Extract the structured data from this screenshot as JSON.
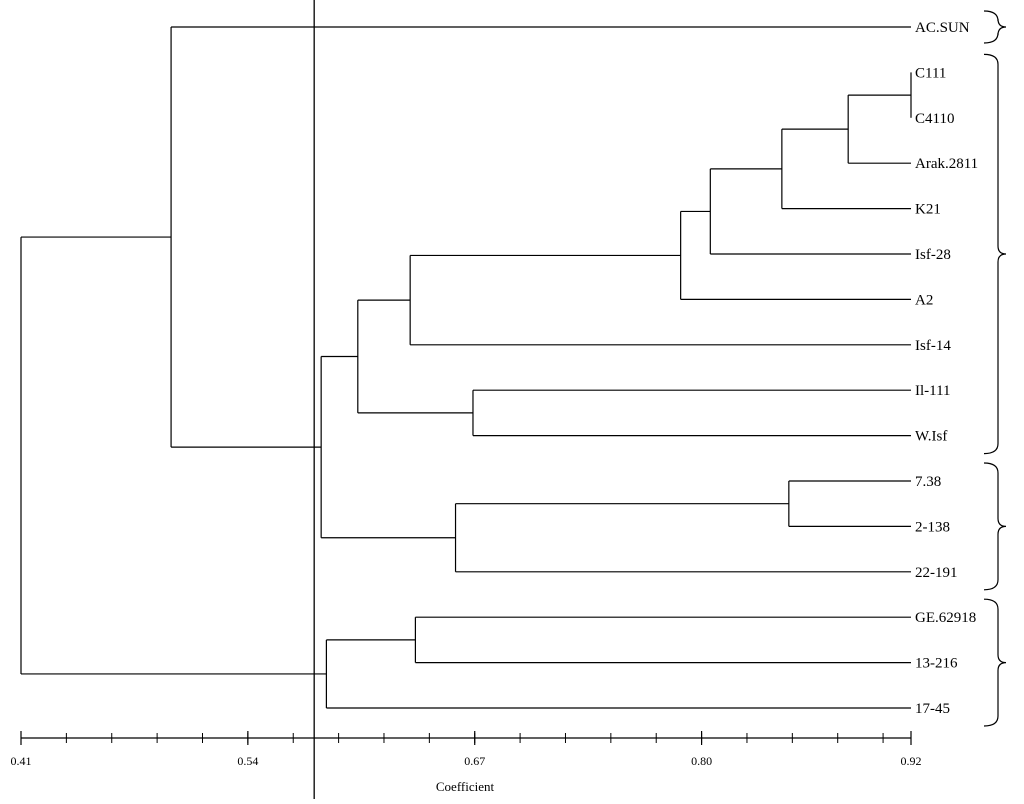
{
  "chart_data": {
    "type": "dendrogram",
    "xlabel": "Coefficient",
    "xlim": [
      0.41,
      0.92
    ],
    "ticks": {
      "values": [
        0.41,
        0.54,
        0.67,
        0.8,
        0.92
      ],
      "labels": [
        "0.41",
        "0.54",
        "0.67",
        "0.80",
        "0.92"
      ],
      "minor_step": 0.026
    },
    "reference_line": 0.578,
    "leaves": [
      "AC.SUN",
      "C111",
      "C4110",
      "Arak.2811",
      "K21",
      "Isf-28",
      "A2",
      "Isf-14",
      "Il-111",
      "W.Isf",
      "7.38",
      "2-138",
      "22-191",
      "GE.62918",
      "13-216",
      "17-45"
    ],
    "merges": [
      {
        "id": "m1",
        "children": [
          "C111",
          "C4110"
        ],
        "height": 0.92
      },
      {
        "id": "m2",
        "children": [
          "m1",
          "Arak.2811"
        ],
        "height": 0.884
      },
      {
        "id": "m3",
        "children": [
          "m2",
          "K21"
        ],
        "height": 0.846
      },
      {
        "id": "m4",
        "children": [
          "m3",
          "Isf-28"
        ],
        "height": 0.805
      },
      {
        "id": "m5",
        "children": [
          "m4",
          "A2"
        ],
        "height": 0.788
      },
      {
        "id": "m6",
        "children": [
          "m5",
          "Isf-14"
        ],
        "height": 0.633
      },
      {
        "id": "m7",
        "children": [
          "Il-111",
          "W.Isf"
        ],
        "height": 0.669
      },
      {
        "id": "m8",
        "children": [
          "m6",
          "m7"
        ],
        "height": 0.603
      },
      {
        "id": "m9",
        "children": [
          "7.38",
          "2-138"
        ],
        "height": 0.85
      },
      {
        "id": "m10",
        "children": [
          "m9",
          "22-191"
        ],
        "height": 0.659
      },
      {
        "id": "m11",
        "children": [
          "m8",
          "m10"
        ],
        "height": 0.582
      },
      {
        "id": "m12",
        "children": [
          "AC.SUN",
          "m11"
        ],
        "height": 0.496
      },
      {
        "id": "m13",
        "children": [
          "GE.62918",
          "13-216"
        ],
        "height": 0.636
      },
      {
        "id": "m14",
        "children": [
          "m13",
          "17-45"
        ],
        "height": 0.585
      },
      {
        "id": "m15",
        "children": [
          "m12",
          "m14"
        ],
        "height": 0.41
      }
    ],
    "groups": [
      {
        "leaves": [
          "AC.SUN"
        ]
      },
      {
        "leaves": [
          "C111",
          "W.Isf"
        ]
      },
      {
        "leaves": [
          "7.38",
          "22-191"
        ]
      },
      {
        "leaves": [
          "GE.62918",
          "17-45"
        ]
      }
    ],
    "grid": false
  }
}
